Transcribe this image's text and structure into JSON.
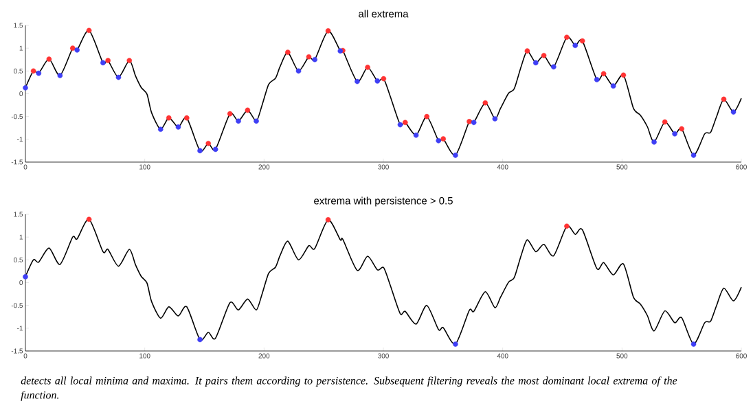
{
  "chart_data": [
    {
      "type": "line",
      "title": "all extrema",
      "xlim": [
        0,
        600
      ],
      "ylim": [
        -1.5,
        1.5
      ],
      "xticks": [
        0,
        100,
        200,
        300,
        400,
        500,
        600
      ],
      "yticks": [
        -1.5,
        -1,
        -0.5,
        0,
        0.5,
        1,
        1.5
      ],
      "series": [
        {
          "color": "#000000",
          "marker": "none",
          "x": [
            0,
            6.7,
            11.1,
            19.8,
            29,
            39.6,
            43.3,
            53.3,
            65,
            69.2,
            78,
            87.1,
            92.3,
            97,
            101.9,
            105.8,
            113.3,
            120.2,
            128.1,
            135.2,
            146.3,
            153.3,
            159.3,
            171.4,
            178.5,
            186.2,
            193.5,
            198.1,
            203.9,
            209.6,
            213.5,
            219.9,
            228.9,
            237.5,
            242.5,
            253.7,
            263.9,
            266,
            278.1,
            286.8,
            295,
            300.2,
            305.8,
            314.1,
            318.3,
            327.4,
            336.4,
            346.2,
            350.2,
            360.4,
            372,
            375.8,
            385.4,
            393.5,
            398.2,
            404.9,
            409.7,
            415.5,
            420.6,
            427.7,
            434.5,
            442.7,
            453.7,
            460.8,
            466.8,
            478.9,
            484.6,
            492.7,
            501.2,
            509.6,
            515.4,
            521.2,
            526.9,
            535.9,
            544.2,
            550,
            560,
            569.3,
            574.2,
            579,
            585.3,
            593.4,
            600
          ],
          "values": [
            0.13,
            0.5,
            0.45,
            0.76,
            0.4,
            1.0,
            0.96,
            1.39,
            0.68,
            0.73,
            0.36,
            0.73,
            0.39,
            0.14,
            -0.01,
            -0.42,
            -0.78,
            -0.53,
            -0.73,
            -0.53,
            -1.25,
            -1.09,
            -1.22,
            -0.44,
            -0.6,
            -0.36,
            -0.6,
            -0.27,
            0.21,
            0.34,
            0.6,
            0.91,
            0.5,
            0.81,
            0.75,
            1.38,
            0.94,
            0.95,
            0.27,
            0.58,
            0.28,
            0.33,
            -0.06,
            -0.68,
            -0.63,
            -0.91,
            -0.5,
            -1.03,
            -0.99,
            -1.35,
            -0.61,
            -0.63,
            -0.2,
            -0.55,
            -0.32,
            0.01,
            0.11,
            0.6,
            0.94,
            0.68,
            0.84,
            0.59,
            1.24,
            1.06,
            1.16,
            0.31,
            0.44,
            0.17,
            0.41,
            -0.32,
            -0.47,
            -0.72,
            -1.06,
            -0.62,
            -0.88,
            -0.77,
            -1.35,
            -0.88,
            -0.85,
            -0.52,
            -0.12,
            -0.4,
            -0.1
          ]
        },
        {
          "type": "scatter",
          "color": "#ff3333",
          "marker": "circle",
          "x": [
            6.7,
            19.8,
            39.6,
            53.3,
            69.2,
            87.1,
            120.2,
            135.2,
            153.3,
            171.4,
            186.2,
            219.9,
            237.5,
            253.7,
            266,
            286.8,
            300.2,
            318.3,
            336.4,
            350.2,
            372,
            385.4,
            420.6,
            434.5,
            453.7,
            466.8,
            484.6,
            501.2,
            535.9,
            550,
            585.3
          ],
          "values": [
            0.5,
            0.76,
            1.0,
            1.39,
            0.73,
            0.73,
            -0.53,
            -0.53,
            -1.09,
            -0.44,
            -0.36,
            0.91,
            0.81,
            1.38,
            0.95,
            0.58,
            0.33,
            -0.63,
            -0.5,
            -0.99,
            -0.61,
            -0.2,
            0.94,
            0.84,
            1.24,
            1.16,
            0.44,
            0.41,
            -0.62,
            -0.77,
            -0.12
          ]
        },
        {
          "type": "scatter",
          "color": "#3f3ff5",
          "marker": "circle",
          "x": [
            0,
            11.1,
            29,
            43.3,
            65,
            78,
            113.3,
            128.1,
            146.3,
            159.3,
            178.5,
            193.5,
            228.9,
            242.5,
            263.9,
            278.1,
            295,
            314.1,
            327.4,
            346.2,
            360.4,
            375.8,
            393.5,
            427.7,
            442.7,
            460.8,
            478.9,
            492.7,
            526.9,
            544.2,
            560,
            593.4
          ],
          "values": [
            0.13,
            0.45,
            0.4,
            0.96,
            0.68,
            0.36,
            -0.78,
            -0.73,
            -1.25,
            -1.22,
            -0.6,
            -0.6,
            0.5,
            0.75,
            0.94,
            0.27,
            0.28,
            -0.68,
            -0.91,
            -1.03,
            -1.35,
            -0.63,
            -0.55,
            0.68,
            0.59,
            1.06,
            0.31,
            0.17,
            -1.06,
            -0.88,
            -1.35,
            -0.4
          ]
        }
      ]
    },
    {
      "type": "line",
      "title": "extrema with persistence > 0.5",
      "xlim": [
        0,
        600
      ],
      "ylim": [
        -1.5,
        1.5
      ],
      "xticks": [
        0,
        100,
        200,
        300,
        400,
        500,
        600
      ],
      "yticks": [
        -1.5,
        -1,
        -0.5,
        0,
        0.5,
        1,
        1.5
      ],
      "annotations": [
        "detects all local minima and maxima. It pairs them according to persistence. Subsequent filtering reveals the most dominant local extrema of the function."
      ],
      "series": [
        {
          "color": "#000000",
          "marker": "none",
          "x": [
            0,
            6.7,
            11.1,
            19.8,
            29,
            39.6,
            43.3,
            53.3,
            65,
            69.2,
            78,
            87.1,
            92.3,
            97,
            101.9,
            105.8,
            113.3,
            120.2,
            128.1,
            135.2,
            146.3,
            153.3,
            159.3,
            171.4,
            178.5,
            186.2,
            193.5,
            198.1,
            203.9,
            209.6,
            213.5,
            219.9,
            228.9,
            237.5,
            242.5,
            253.7,
            263.9,
            266,
            278.1,
            286.8,
            295,
            300.2,
            305.8,
            314.1,
            318.3,
            327.4,
            336.4,
            346.2,
            350.2,
            360.4,
            372,
            375.8,
            385.4,
            393.5,
            398.2,
            404.9,
            409.7,
            415.5,
            420.6,
            427.7,
            434.5,
            442.7,
            453.7,
            460.8,
            466.8,
            478.9,
            484.6,
            492.7,
            501.2,
            509.6,
            515.4,
            521.2,
            526.9,
            535.9,
            544.2,
            550,
            560,
            569.3,
            574.2,
            579,
            585.3,
            593.4,
            600
          ],
          "values": [
            0.13,
            0.5,
            0.45,
            0.76,
            0.4,
            1.0,
            0.96,
            1.39,
            0.68,
            0.73,
            0.36,
            0.73,
            0.39,
            0.14,
            -0.01,
            -0.42,
            -0.78,
            -0.53,
            -0.73,
            -0.53,
            -1.25,
            -1.09,
            -1.22,
            -0.44,
            -0.6,
            -0.36,
            -0.6,
            -0.27,
            0.21,
            0.34,
            0.6,
            0.91,
            0.5,
            0.81,
            0.75,
            1.38,
            0.94,
            0.95,
            0.27,
            0.58,
            0.28,
            0.33,
            -0.06,
            -0.68,
            -0.63,
            -0.91,
            -0.5,
            -1.03,
            -0.99,
            -1.35,
            -0.61,
            -0.63,
            -0.2,
            -0.55,
            -0.32,
            0.01,
            0.11,
            0.6,
            0.94,
            0.68,
            0.84,
            0.59,
            1.24,
            1.06,
            1.16,
            0.31,
            0.44,
            0.17,
            0.41,
            -0.32,
            -0.47,
            -0.72,
            -1.06,
            -0.62,
            -0.88,
            -0.77,
            -1.35,
            -0.88,
            -0.85,
            -0.52,
            -0.12,
            -0.4,
            -0.1
          ]
        },
        {
          "type": "scatter",
          "color": "#ff3333",
          "marker": "circle",
          "x": [
            53.3,
            253.7,
            453.7
          ],
          "values": [
            1.39,
            1.38,
            1.24
          ]
        },
        {
          "type": "scatter",
          "color": "#3f3ff5",
          "marker": "circle",
          "x": [
            0,
            146.3,
            360.4,
            560
          ],
          "values": [
            0.13,
            -1.25,
            -1.35,
            -1.35
          ]
        }
      ]
    }
  ]
}
